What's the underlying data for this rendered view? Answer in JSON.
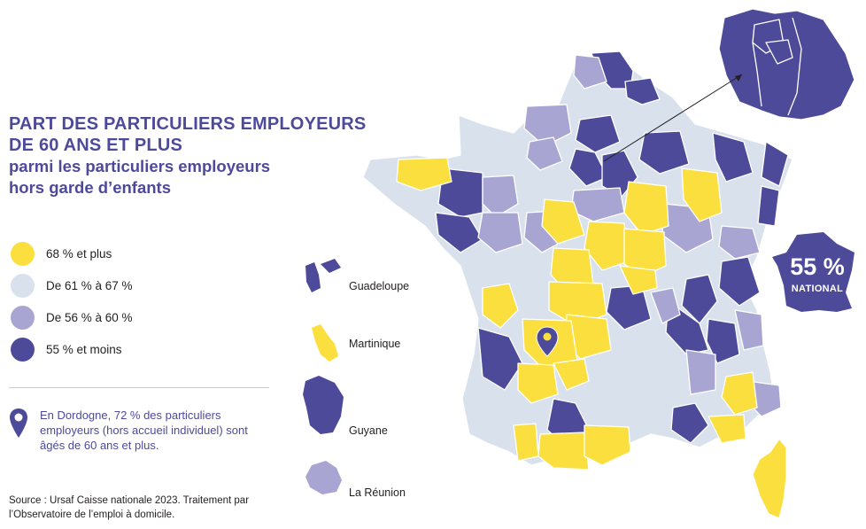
{
  "title": {
    "line1": "PART DES PARTICULIERS EMPLOYEURS",
    "line2": "DE 60 ANS ET PLUS",
    "line3": "parmi les particuliers employeurs",
    "line4": "hors garde d’enfants"
  },
  "legend": [
    {
      "label": "68 % et plus",
      "color": "#fadf3e"
    },
    {
      "label": "De 61 % à 67 %",
      "color": "#d9e1ec"
    },
    {
      "label": "De 56 % à 60 %",
      "color": "#a9a5d3"
    },
    {
      "label": "55 % et moins",
      "color": "#4e4a9a"
    }
  ],
  "note": {
    "text": "En Dordogne, 72 % des particuliers employeurs (hors accueil individuel) sont âgés de 60 ans et plus.",
    "icon": "map-pin-icon"
  },
  "source": "Source : Ursaf Caisse nationale 2023. Traitement par l’Observatoire de l’emploi à domicile.",
  "overseas": [
    {
      "name": "Guadeloupe",
      "category": "55 % et moins"
    },
    {
      "name": "Martinique",
      "category": "68 % et plus"
    },
    {
      "name": "Guyane",
      "category": "55 % et moins"
    },
    {
      "name": "La Réunion",
      "category": "De 56 % à 60 %"
    }
  ],
  "national": {
    "value": "55 %",
    "label": "NATIONAL"
  },
  "highlight": {
    "department": "Dordogne",
    "value": "72 %"
  }
}
